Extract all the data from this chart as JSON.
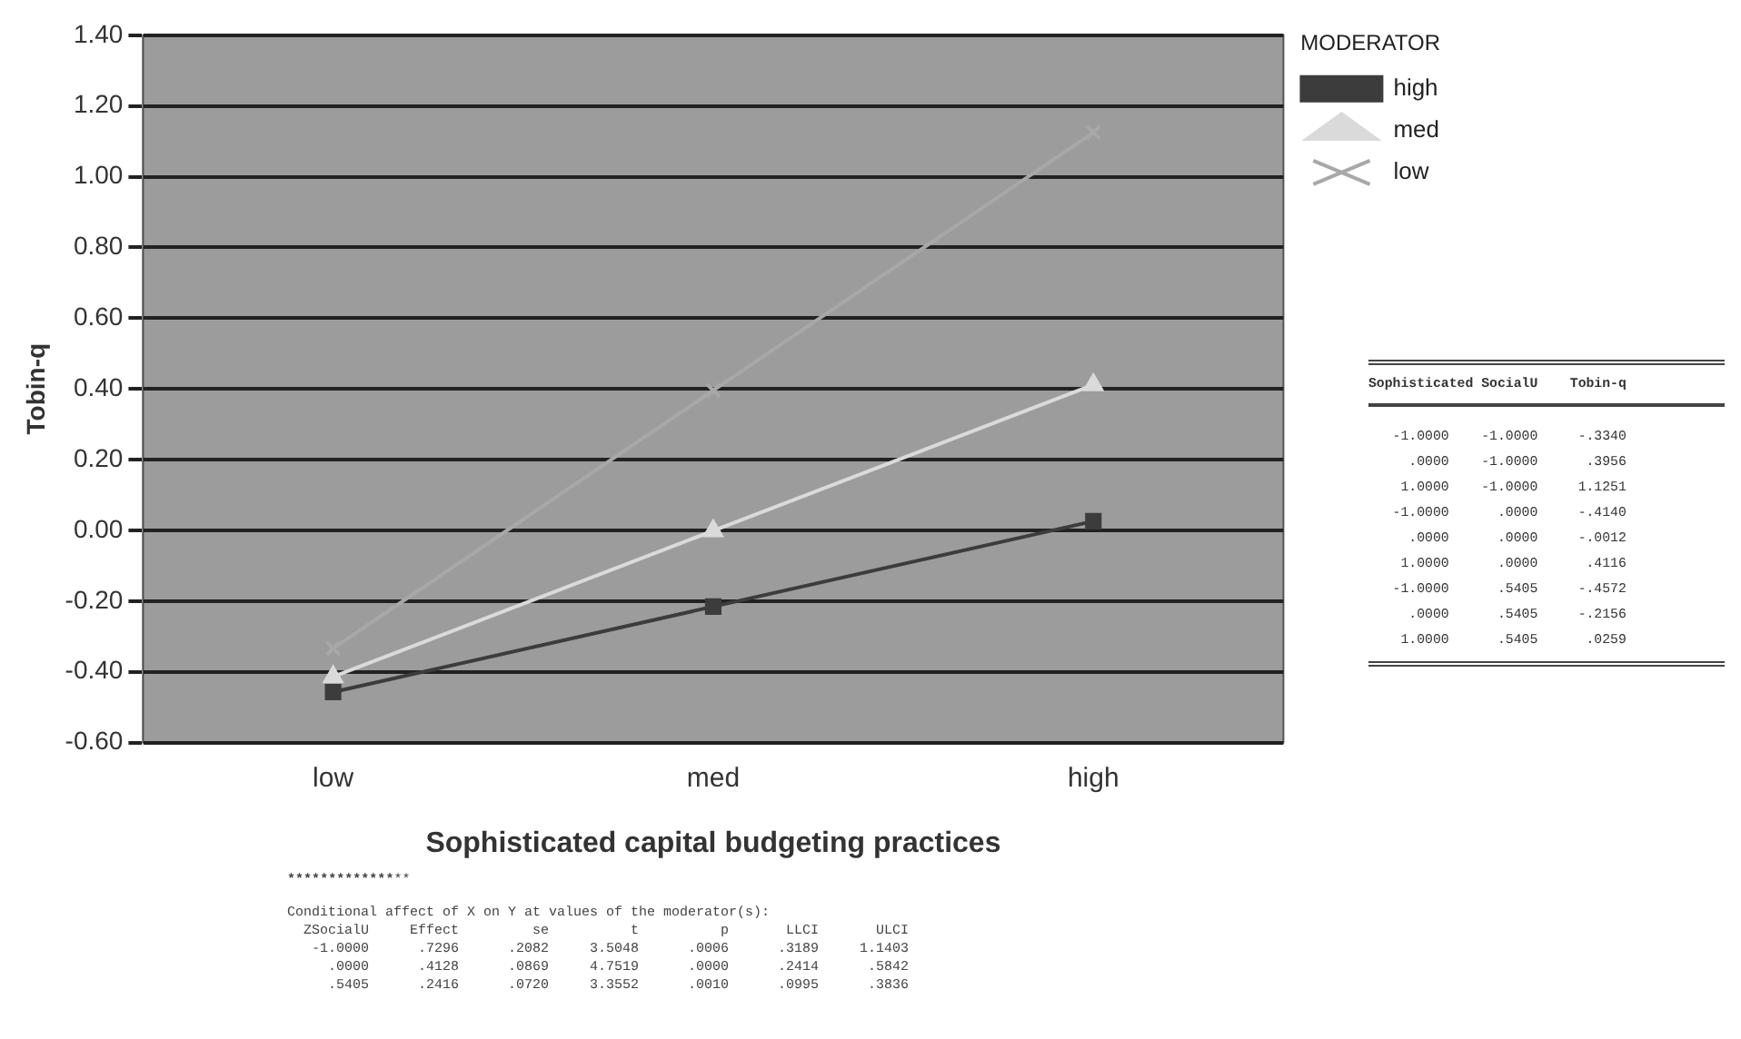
{
  "chart_data": {
    "type": "line",
    "ylabel": "Tobin-q",
    "xlabel": "Sophisticated capital budgeting practices",
    "legend_title": "MODERATOR",
    "legend": "top right",
    "grid": "y",
    "categories": [
      "low",
      "med",
      "high"
    ],
    "ylim": [
      -0.6,
      1.4
    ],
    "yticks": [
      {
        "value": 1.4,
        "label": "1.40"
      },
      {
        "value": 1.2,
        "label": "1.20"
      },
      {
        "value": 1.0,
        "label": "1.00"
      },
      {
        "value": 0.8,
        "label": "0.80"
      },
      {
        "value": 0.6,
        "label": "0.60"
      },
      {
        "value": 0.4,
        "label": "0.40"
      },
      {
        "value": 0.2,
        "label": "0.20"
      },
      {
        "value": 0,
        "label": "0.00"
      },
      {
        "value": -0.2,
        "label": "-0.20"
      },
      {
        "value": -0.4,
        "label": "-0.40"
      },
      {
        "value": -0.6,
        "label": "-0.60"
      }
    ],
    "series": [
      {
        "name": "high",
        "color": "#3c3c3c",
        "marker": "square",
        "values": [
          -0.4572,
          -0.2156,
          0.0259
        ]
      },
      {
        "name": "med",
        "color": "#dadada",
        "marker": "triangle",
        "values": [
          -0.414,
          -0.0012,
          0.4116
        ]
      },
      {
        "name": "low",
        "color": "#a8a8a8",
        "marker": "cross",
        "values": [
          -0.334,
          0.3956,
          1.1251
        ]
      }
    ],
    "annotations": [
      "Sophisticated SocialU    Tobin-q",
      "   -1.0000    -1.0000     -.3340",
      "     .0000    -1.0000      .3956",
      "    1.0000    -1.0000     1.1251",
      "   -1.0000      .0000     -.4140",
      "     .0000      .0000     -.0012",
      "    1.0000      .0000      .4116",
      "   -1.0000      .5405     -.4572",
      "     .0000      .5405     -.2156",
      "    1.0000      .5405      .0259",
      "*******************************************************************",
      "Conditional affect of X on Y at values of the moderator(s):",
      "  ZSocialU     Effect         se          t          p       LLCI       ULCI",
      "   -1.0000      .7296      .2082     3.5048      .0006      .3189     1.1403",
      "     .0000      .4128      .0869     4.7519      .0000      .2414      .5842",
      "     .5405      .2416      .0720     3.3552      .0010      .0995      .3836"
    ]
  }
}
